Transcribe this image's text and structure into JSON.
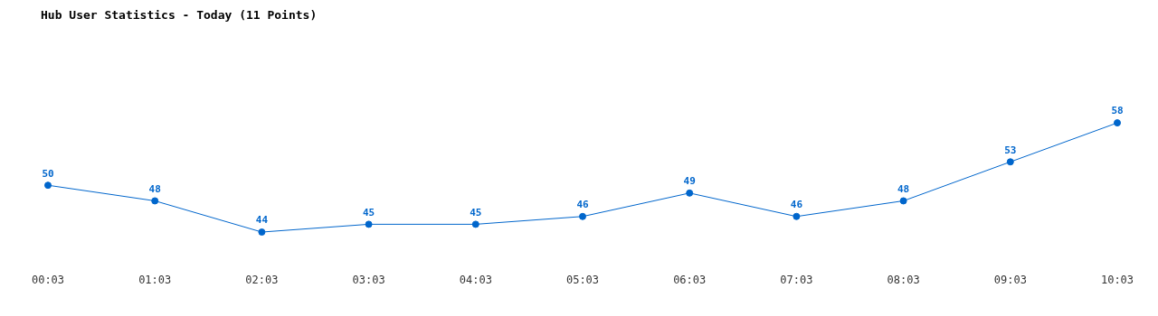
{
  "chart_data": {
    "type": "line",
    "title": "Hub User Statistics - Today (11 Points)",
    "categories": [
      "00:03",
      "01:03",
      "02:03",
      "03:03",
      "04:03",
      "05:03",
      "06:03",
      "07:03",
      "08:03",
      "09:03",
      "10:03"
    ],
    "series": [
      {
        "color": "#0066cc",
        "values": [
          50,
          48,
          44,
          45,
          45,
          46,
          49,
          46,
          48,
          53,
          58
        ]
      }
    ],
    "relative": false,
    "data_labels": true,
    "marker": "circle",
    "line_style": "solid",
    "grid": false,
    "legend": false
  }
}
